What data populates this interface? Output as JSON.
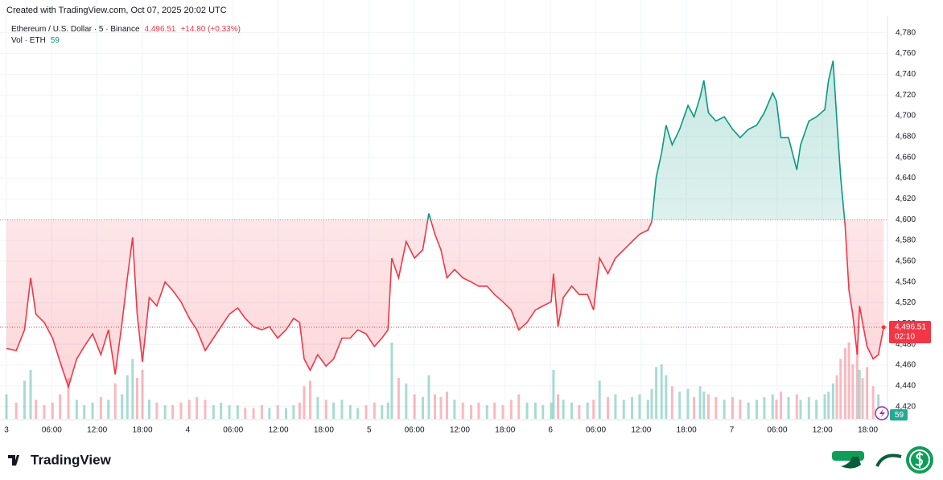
{
  "chart_data": {
    "type": "baseline",
    "created": "Created with TradingView.com, Oct 07, 2025 20:02 UTC",
    "symbol": "Ethereum / U.S. Dollar · 5 · Binance",
    "last_label": "4,496.51",
    "change": "+14.80 (+0.33%)",
    "volume_title": "Vol · ETH",
    "volume_label": "59",
    "countdown": "02:10",
    "logo": "TradingView",
    "baseline": 4600,
    "color_up": "#089981",
    "color_down": "#f23645",
    "grid": true,
    "x": [
      0,
      1.3,
      2.4,
      3.2,
      3.9,
      5.0,
      6.1,
      7.1,
      8.2,
      9.3,
      10.3,
      11.4,
      12.5,
      13.5,
      14.4,
      15.3,
      16.0,
      16.7,
      17.3,
      18.0,
      18.9,
      19.9,
      21.0,
      22.0,
      23.1,
      24.2,
      25.2,
      26.3,
      27.4,
      28.4,
      29.5,
      30.6,
      31.6,
      32.7,
      33.8,
      34.8,
      35.9,
      37.0,
      38.0,
      38.8,
      39.4,
      40.2,
      41.2,
      42.3,
      43.3,
      44.4,
      45.5,
      46.5,
      47.6,
      48.7,
      49.7,
      50.5,
      51.0,
      51.9,
      52.9,
      54.0,
      55.1,
      55.9,
      56.7,
      57.5,
      58.3,
      59.3,
      60.4,
      61.5,
      62.5,
      63.6,
      64.6,
      65.7,
      66.8,
      67.8,
      68.9,
      70.0,
      71.0,
      72.1,
      72.4,
      73.0,
      73.7,
      74.8,
      75.8,
      76.9,
      77.7,
      78.5,
      79.6,
      80.6,
      81.7,
      82.8,
      83.8,
      84.9,
      85.4,
      86.0,
      86.7,
      87.3,
      88.1,
      89.1,
      90.2,
      91.0,
      91.8,
      92.3,
      92.9,
      93.9,
      95.0,
      96.1,
      97.1,
      98.2,
      99.3,
      100.3,
      101.4,
      101.9,
      102.5,
      103.5,
      104.6,
      105.1,
      106.2,
      107.2,
      108.3,
      108.8,
      109.4,
      109.9,
      110.4,
      111.0,
      111.5,
      112.0,
      112.6,
      112.9,
      113.3,
      113.9,
      114.7,
      115.4,
      116.1
    ],
    "values": [
      4476,
      4474,
      4494,
      4544,
      4509,
      4501,
      4486,
      4463,
      4439,
      4466,
      4478,
      4490,
      4470,
      4494,
      4451,
      4501,
      4544,
      4583,
      4509,
      4463,
      4525,
      4517,
      4540,
      4532,
      4521,
      4505,
      4494,
      4474,
      4486,
      4497,
      4509,
      4515,
      4505,
      4497,
      4494,
      4497,
      4486,
      4494,
      4505,
      4501,
      4466,
      4455,
      4470,
      4459,
      4466,
      4486,
      4486,
      4494,
      4490,
      4478,
      4486,
      4494,
      4563,
      4544,
      4579,
      4563,
      4571,
      4606,
      4586,
      4571,
      4544,
      4552,
      4544,
      4540,
      4536,
      4536,
      4528,
      4521,
      4513,
      4494,
      4501,
      4513,
      4517,
      4521,
      4548,
      4497,
      4525,
      4536,
      4528,
      4528,
      4513,
      4563,
      4548,
      4563,
      4571,
      4579,
      4586,
      4590,
      4598,
      4641,
      4664,
      4691,
      4672,
      4687,
      4710,
      4699,
      4718,
      4734,
      4703,
      4695,
      4699,
      4687,
      4679,
      4687,
      4691,
      4703,
      4722,
      4714,
      4679,
      4679,
      4648,
      4672,
      4695,
      4699,
      4706,
      4734,
      4753,
      4695,
      4641,
      4594,
      4532,
      4509,
      4470,
      4517,
      4501,
      4478,
      4466,
      4470,
      4496.51
    ],
    "volume": [
      900,
      600,
      1400,
      1800,
      700,
      500,
      600,
      900,
      1500,
      700,
      500,
      600,
      800,
      700,
      1300,
      900,
      1600,
      2200,
      1500,
      1800,
      700,
      600,
      500,
      500,
      600,
      700,
      800,
      700,
      500,
      600,
      500,
      500,
      400,
      400,
      500,
      400,
      500,
      400,
      500,
      600,
      1200,
      1400,
      800,
      700,
      600,
      700,
      500,
      400,
      500,
      600,
      500,
      600,
      2800,
      1500,
      1300,
      900,
      800,
      1600,
      900,
      800,
      1000,
      700,
      600,
      500,
      600,
      500,
      600,
      500,
      700,
      900,
      600,
      600,
      500,
      600,
      1800,
      900,
      700,
      600,
      500,
      600,
      700,
      1400,
      800,
      900,
      700,
      800,
      900,
      700,
      1100,
      1900,
      2000,
      1600,
      1200,
      1000,
      1100,
      800,
      1200,
      1000,
      900,
      800,
      700,
      800,
      700,
      600,
      700,
      800,
      900,
      700,
      1000,
      800,
      900,
      700,
      800,
      700,
      900,
      1000,
      1300,
      1600,
      2200,
      2600,
      2800,
      2000,
      2600,
      1800,
      1500,
      1900,
      1200,
      900,
      59
    ],
    "xlim": [
      0,
      116.6
    ],
    "xticks": [
      {
        "value": 0,
        "label": "3"
      },
      {
        "value": 6,
        "label": "06:00"
      },
      {
        "value": 12,
        "label": "12:00"
      },
      {
        "value": 18,
        "label": "18:00"
      },
      {
        "value": 24,
        "label": "4"
      },
      {
        "value": 30,
        "label": "06:00"
      },
      {
        "value": 36,
        "label": "12:00"
      },
      {
        "value": 42,
        "label": "18:00"
      },
      {
        "value": 48,
        "label": "5"
      },
      {
        "value": 54,
        "label": "06:00"
      },
      {
        "value": 60,
        "label": "12:00"
      },
      {
        "value": 66,
        "label": "18:00"
      },
      {
        "value": 72,
        "label": "6"
      },
      {
        "value": 78,
        "label": "06:00"
      },
      {
        "value": 84,
        "label": "12:00"
      },
      {
        "value": 90,
        "label": "18:00"
      },
      {
        "value": 96,
        "label": "7"
      },
      {
        "value": 102,
        "label": "06:00"
      },
      {
        "value": 108,
        "label": "12:00"
      },
      {
        "value": 114,
        "label": "18:00"
      }
    ],
    "ylim": [
      4409,
      4796
    ],
    "yticks": [
      {
        "value": 4420,
        "label": "4,420"
      },
      {
        "value": 4440,
        "label": "4,440"
      },
      {
        "value": 4460,
        "label": "4,460"
      },
      {
        "value": 4480,
        "label": "4,480"
      },
      {
        "value": 4500,
        "label": "4,500"
      },
      {
        "value": 4520,
        "label": "4,520"
      },
      {
        "value": 4540,
        "label": "4,540"
      },
      {
        "value": 4560,
        "label": "4,560"
      },
      {
        "value": 4580,
        "label": "4,580"
      },
      {
        "value": 4600,
        "label": "4,600"
      },
      {
        "value": 4620,
        "label": "4,620"
      },
      {
        "value": 4640,
        "label": "4,640"
      },
      {
        "value": 4660,
        "label": "4,660"
      },
      {
        "value": 4680,
        "label": "4,680"
      },
      {
        "value": 4700,
        "label": "4,700"
      },
      {
        "value": 4720,
        "label": "4,720"
      },
      {
        "value": 4740,
        "label": "4,740"
      },
      {
        "value": 4760,
        "label": "4,760"
      },
      {
        "value": 4780,
        "label": "4,780"
      }
    ]
  }
}
